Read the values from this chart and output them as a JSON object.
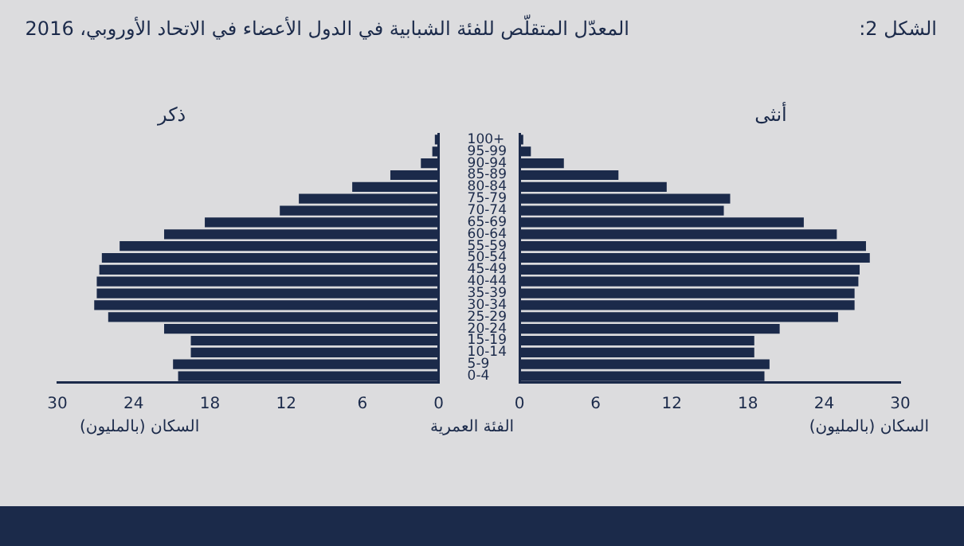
{
  "chart_data": [
    {
      "type": "bar",
      "orientation": "horizontal",
      "title": "المعدّل المتقلّص للفئة الشبابية في الدول الأعضاء في الاتحاد الأوروبي، 2016",
      "annotations": [
        "الشكل 2:"
      ],
      "xlabel": "السكان (بالمليون)",
      "ylabel": "الفئة العمرية",
      "categories": [
        "100+",
        "95-99",
        "90-94",
        "85-89",
        "80-84",
        "75-79",
        "70-74",
        "65-69",
        "60-64",
        "55-59",
        "50-54",
        "45-49",
        "40-44",
        "35-39",
        "30-34",
        "25-29",
        "20-24",
        "15-19",
        "10-14",
        "5-9",
        "0-4"
      ],
      "series": [
        {
          "name": "ذكر",
          "color": "#1b2a4a",
          "values": [
            0.3,
            0.5,
            1.4,
            3.8,
            6.8,
            11.0,
            12.5,
            18.4,
            21.6,
            25.1,
            26.5,
            26.7,
            26.9,
            26.9,
            27.1,
            26.0,
            21.6,
            19.5,
            19.5,
            20.9,
            20.5
          ]
        }
      ],
      "xlim": [
        30,
        0
      ],
      "xticks": [
        30,
        24,
        18,
        12,
        6,
        0
      ]
    },
    {
      "type": "bar",
      "orientation": "horizontal",
      "xlabel": "السكان (بالمليون)",
      "tick_labels": "x",
      "categories": [
        null,
        null,
        null,
        null,
        null,
        null,
        null,
        null,
        null,
        null,
        null,
        null,
        null,
        null,
        null,
        null,
        null,
        null,
        null,
        null,
        null
      ],
      "series": [
        {
          "name": "أنثى",
          "color": "#1b2a4a",
          "values": [
            0.3,
            0.9,
            3.5,
            7.8,
            11.6,
            16.6,
            16.1,
            22.4,
            25.0,
            27.3,
            27.6,
            26.8,
            26.7,
            26.4,
            26.4,
            25.1,
            20.5,
            18.5,
            18.5,
            19.7,
            19.3
          ]
        }
      ],
      "xlim": [
        0,
        30
      ],
      "xticks": [
        0,
        6,
        12,
        18,
        24,
        30
      ]
    }
  ]
}
